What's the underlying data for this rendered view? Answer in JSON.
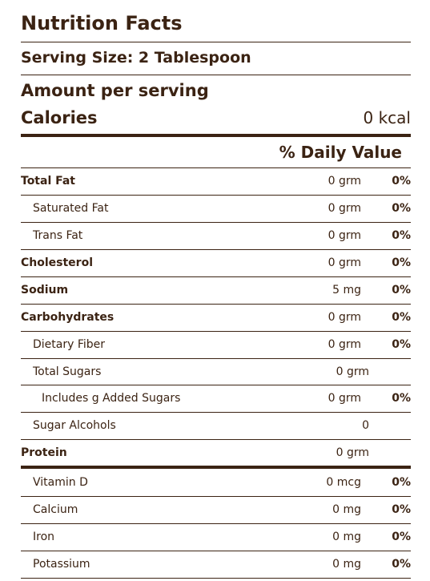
{
  "header": {
    "title": "Nutrition Facts",
    "serving_size": "Serving Size: 2 Tablespoon",
    "amount_per_serving": "Amount per serving",
    "calories_label": "Calories",
    "calories_value": "0 kcal",
    "daily_value_label": "% Daily Value"
  },
  "rows": [
    {
      "label": "Total Fat",
      "amount": "0 grm",
      "pct": "0%"
    },
    {
      "label": "Saturated Fat",
      "amount": "0 grm",
      "pct": "0%"
    },
    {
      "label": "Trans Fat",
      "amount": "0 grm",
      "pct": "0%"
    },
    {
      "label": "Cholesterol",
      "amount": "0 grm",
      "pct": "0%"
    },
    {
      "label": "Sodium",
      "amount": "5 mg",
      "pct": "0%"
    },
    {
      "label": "Carbohydrates",
      "amount": "0 grm",
      "pct": "0%"
    },
    {
      "label": "Dietary Fiber",
      "amount": "0 grm",
      "pct": "0%"
    },
    {
      "label": "Total Sugars",
      "amount": "0 grm",
      "pct": ""
    },
    {
      "label": "Includes g Added Sugars",
      "amount": "0 grm",
      "pct": "0%"
    },
    {
      "label": "Sugar Alcohols",
      "amount": "0",
      "pct": ""
    },
    {
      "label": "Protein",
      "amount": "0 grm",
      "pct": ""
    }
  ],
  "vitamins": [
    {
      "label": "Vitamin D",
      "amount": "0 mcg",
      "pct": "0%"
    },
    {
      "label": "Calcium",
      "amount": "0 mg",
      "pct": "0%"
    },
    {
      "label": "Iron",
      "amount": "0 mg",
      "pct": "0%"
    },
    {
      "label": "Potassium",
      "amount": "0 mg",
      "pct": "0%"
    }
  ]
}
